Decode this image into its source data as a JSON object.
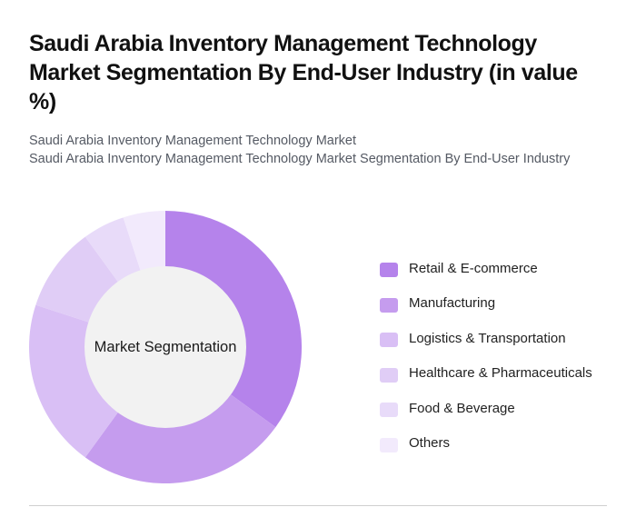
{
  "header": {
    "title": "Saudi Arabia Inventory Management Technology Market Segmentation By End-User Industry (in value %)",
    "subtitle_line1": "Saudi Arabia Inventory Management Technology Market",
    "subtitle_line2": "Saudi Arabia Inventory Management Technology Market Segmentation By End-User Industry"
  },
  "chart": {
    "center_label": "Market Segmentation"
  },
  "legend": {
    "items": [
      {
        "label": "Retail & E-commerce",
        "color": "#b583eb"
      },
      {
        "label": "Manufacturing",
        "color": "#c59cee"
      },
      {
        "label": "Logistics & Transportation",
        "color": "#d9bff5"
      },
      {
        "label": "Healthcare & Pharmaceuticals",
        "color": "#e0cdf6"
      },
      {
        "label": "Food & Beverage",
        "color": "#e8dbf9"
      },
      {
        "label": "Others",
        "color": "#f2eafc"
      }
    ]
  },
  "chart_data": {
    "type": "pie",
    "variant": "donut",
    "title": "Saudi Arabia Inventory Management Technology Market Segmentation By End-User Industry (in value %)",
    "subtitle": "Saudi Arabia Inventory Management Technology Market",
    "center_label": "Market Segmentation",
    "categories": [
      "Retail & E-commerce",
      "Manufacturing",
      "Logistics & Transportation",
      "Healthcare & Pharmaceuticals",
      "Food & Beverage",
      "Others"
    ],
    "values": [
      35,
      25,
      20,
      10,
      5,
      5
    ],
    "unit": "%",
    "colors": [
      "#b583eb",
      "#c59cee",
      "#d9bff5",
      "#e0cdf6",
      "#e8dbf9",
      "#f2eafc"
    ],
    "legend_position": "right",
    "start_angle": "top, clockwise"
  }
}
